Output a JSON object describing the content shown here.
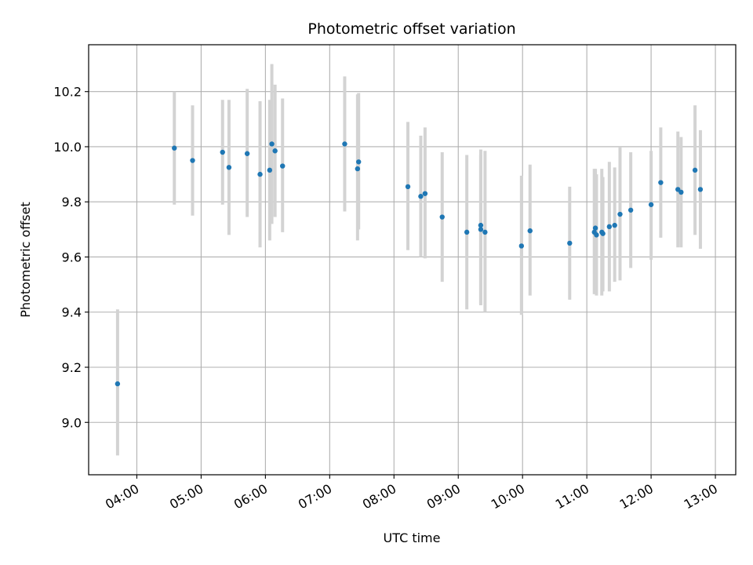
{
  "chart_data": {
    "type": "scatter",
    "title": "Photometric offset variation",
    "xlabel": "UTC time",
    "ylabel": "Photometric offset",
    "x_ticks": [
      "04:00",
      "05:00",
      "06:00",
      "07:00",
      "08:00",
      "09:00",
      "10:00",
      "11:00",
      "12:00",
      "13:00"
    ],
    "y_ticks": [
      "9.0",
      "9.2",
      "9.4",
      "9.6",
      "9.8",
      "10.0",
      "10.2"
    ],
    "xlim": [
      "03:15",
      "13:19"
    ],
    "ylim": [
      8.81,
      10.37
    ],
    "grid": true,
    "colors": {
      "point": "#1f77b4",
      "errorbar": "#d3d3d3",
      "grid": "#b0b0b0"
    },
    "points": [
      {
        "t": "03:42",
        "y": 9.14,
        "lo": 8.88,
        "hi": 9.41
      },
      {
        "t": "04:35",
        "y": 9.995,
        "lo": 9.79,
        "hi": 10.2
      },
      {
        "t": "04:52",
        "y": 9.95,
        "lo": 9.75,
        "hi": 10.15
      },
      {
        "t": "05:20",
        "y": 9.98,
        "lo": 9.79,
        "hi": 10.17
      },
      {
        "t": "05:26",
        "y": 9.925,
        "lo": 9.68,
        "hi": 10.17
      },
      {
        "t": "05:43",
        "y": 9.975,
        "lo": 9.745,
        "hi": 10.21
      },
      {
        "t": "05:55",
        "y": 9.9,
        "lo": 9.635,
        "hi": 10.165
      },
      {
        "t": "06:04",
        "y": 9.915,
        "lo": 9.66,
        "hi": 10.17
      },
      {
        "t": "06:06",
        "y": 10.01,
        "lo": 9.72,
        "hi": 10.3
      },
      {
        "t": "06:09",
        "y": 9.985,
        "lo": 9.745,
        "hi": 10.225
      },
      {
        "t": "06:16",
        "y": 9.93,
        "lo": 9.69,
        "hi": 10.175
      },
      {
        "t": "07:14",
        "y": 10.01,
        "lo": 9.765,
        "hi": 10.255
      },
      {
        "t": "07:26",
        "y": 9.92,
        "lo": 9.66,
        "hi": 10.19
      },
      {
        "t": "07:27",
        "y": 9.945,
        "lo": 9.7,
        "hi": 10.195
      },
      {
        "t": "08:13",
        "y": 9.855,
        "lo": 9.625,
        "hi": 10.09
      },
      {
        "t": "08:25",
        "y": 9.82,
        "lo": 9.6,
        "hi": 10.04
      },
      {
        "t": "08:29",
        "y": 9.83,
        "lo": 9.595,
        "hi": 10.07
      },
      {
        "t": "08:45",
        "y": 9.745,
        "lo": 9.51,
        "hi": 9.98
      },
      {
        "t": "09:08",
        "y": 9.69,
        "lo": 9.41,
        "hi": 9.97
      },
      {
        "t": "09:21",
        "y": 9.715,
        "lo": 9.425,
        "hi": 9.99
      },
      {
        "t": "09:21",
        "y": 9.7,
        "lo": 9.43,
        "hi": 9.97
      },
      {
        "t": "09:25",
        "y": 9.69,
        "lo": 9.4,
        "hi": 9.985
      },
      {
        "t": "09:59",
        "y": 9.64,
        "lo": 9.39,
        "hi": 9.895
      },
      {
        "t": "10:07",
        "y": 9.695,
        "lo": 9.46,
        "hi": 9.935
      },
      {
        "t": "10:44",
        "y": 9.65,
        "lo": 9.445,
        "hi": 9.855
      },
      {
        "t": "11:07",
        "y": 9.69,
        "lo": 9.465,
        "hi": 9.92
      },
      {
        "t": "11:08",
        "y": 9.705,
        "lo": 9.47,
        "hi": 9.92
      },
      {
        "t": "11:09",
        "y": 9.68,
        "lo": 9.46,
        "hi": 9.9
      },
      {
        "t": "11:14",
        "y": 9.69,
        "lo": 9.46,
        "hi": 9.92
      },
      {
        "t": "11:15",
        "y": 9.685,
        "lo": 9.475,
        "hi": 9.89
      },
      {
        "t": "11:21",
        "y": 9.71,
        "lo": 9.475,
        "hi": 9.945
      },
      {
        "t": "11:26",
        "y": 9.715,
        "lo": 9.51,
        "hi": 9.925
      },
      {
        "t": "11:31",
        "y": 9.755,
        "lo": 9.515,
        "hi": 10.0
      },
      {
        "t": "11:41",
        "y": 9.77,
        "lo": 9.56,
        "hi": 9.98
      },
      {
        "t": "12:00",
        "y": 9.79,
        "lo": 9.59,
        "hi": 9.985
      },
      {
        "t": "12:09",
        "y": 9.87,
        "lo": 9.67,
        "hi": 10.07
      },
      {
        "t": "12:25",
        "y": 9.845,
        "lo": 9.635,
        "hi": 10.055
      },
      {
        "t": "12:28",
        "y": 9.835,
        "lo": 9.635,
        "hi": 10.035
      },
      {
        "t": "12:41",
        "y": 9.915,
        "lo": 9.68,
        "hi": 10.15
      },
      {
        "t": "12:46",
        "y": 9.845,
        "lo": 9.63,
        "hi": 10.06
      }
    ]
  }
}
